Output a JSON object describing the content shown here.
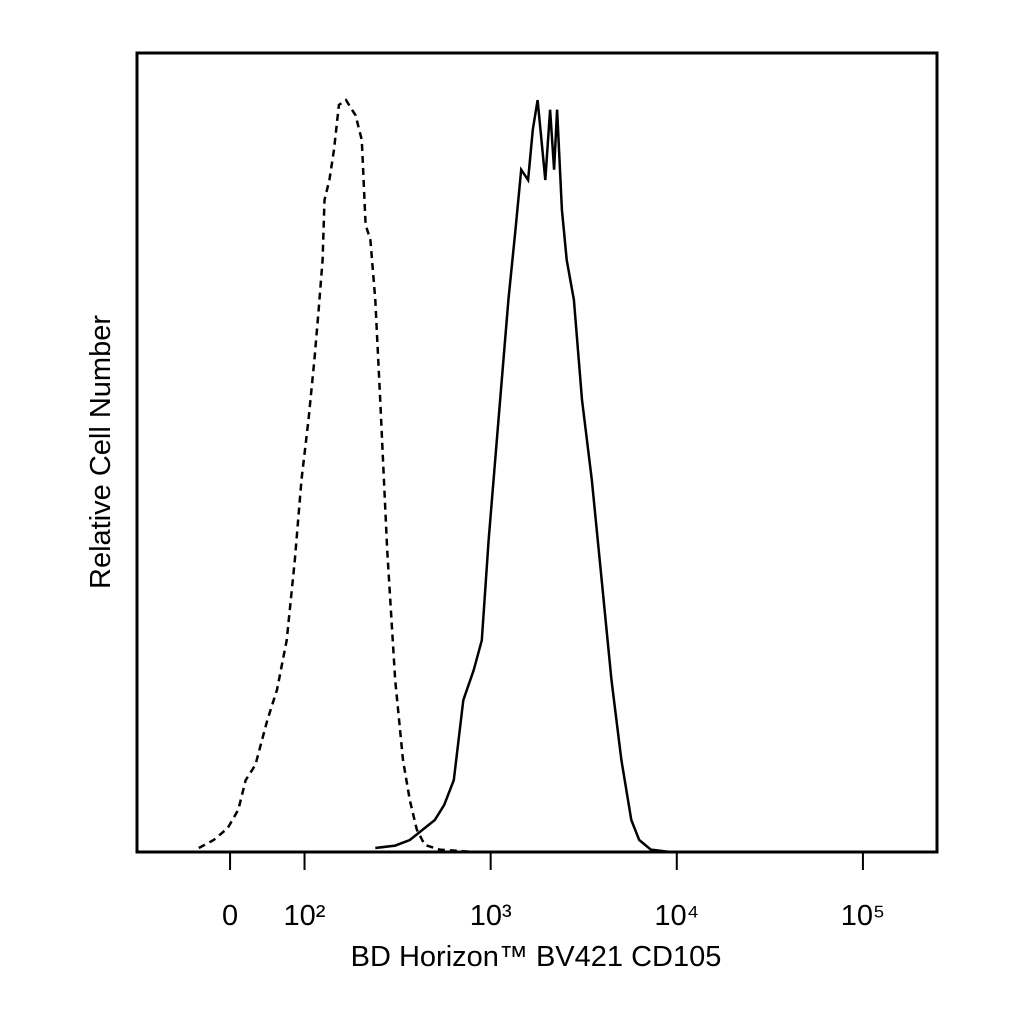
{
  "chart_data": {
    "type": "line",
    "x_label": "BD Horizon™ BV421 CD105",
    "y_label": "Relative Cell Number",
    "xscale": "biexponential",
    "xlim": [
      -125,
      250000
    ],
    "ylim": [
      0,
      100
    ],
    "xticks": [
      0,
      {
        "value": 100,
        "label": "10²"
      },
      {
        "value": 1000,
        "label": "10³"
      },
      {
        "value": 10000,
        "label": "10⁴"
      },
      {
        "value": 100000,
        "label": "10⁵"
      }
    ],
    "series": [
      {
        "color": "#000000",
        "line_style": "dashed",
        "x": [
          -42,
          -22,
          -3,
          11,
          21,
          34,
          50,
          63,
          76,
          87,
          96,
          105,
          113,
          119,
          125,
          128,
          136,
          144,
          153,
          167,
          180,
          188,
          203,
          213,
          226,
          240,
          255,
          278,
          307,
          338,
          368,
          401,
          442,
          531,
          813
        ],
        "values": [
          0.5,
          1.5,
          3,
          5.3,
          9,
          10.9,
          16.5,
          20.3,
          26.5,
          36.5,
          46.6,
          54.1,
          61.6,
          67.8,
          74.1,
          81.6,
          84.1,
          87.9,
          93.5,
          94.1,
          92.9,
          92.2,
          89.1,
          78.5,
          76.6,
          69.1,
          56.6,
          37.8,
          21.5,
          11.5,
          6.5,
          2.8,
          0.9,
          0.3,
          0
        ]
      },
      {
        "color": "#000000",
        "line_style": "solid",
        "x": [
          240,
          307,
          368,
          416,
          501,
          563,
          634,
          713,
          812,
          896,
          975,
          1102,
          1245,
          1358,
          1460,
          1589,
          1684,
          1787,
          1896,
          1967,
          2087,
          2193,
          2274,
          2413,
          2561,
          2801,
          3094,
          3495,
          3949,
          4461,
          5040,
          5694,
          6280,
          7252,
          9225
        ],
        "values": [
          0.5,
          0.8,
          1.5,
          2.5,
          4,
          5.9,
          9,
          19,
          22.8,
          26.5,
          39,
          54.1,
          69.1,
          77.8,
          85.4,
          84.1,
          90.4,
          94.1,
          87.9,
          84.1,
          92.9,
          85.4,
          92.9,
          80.4,
          74.1,
          69.1,
          56.6,
          46.6,
          34,
          21.5,
          11.5,
          4,
          1.5,
          0.3,
          0
        ]
      }
    ]
  }
}
